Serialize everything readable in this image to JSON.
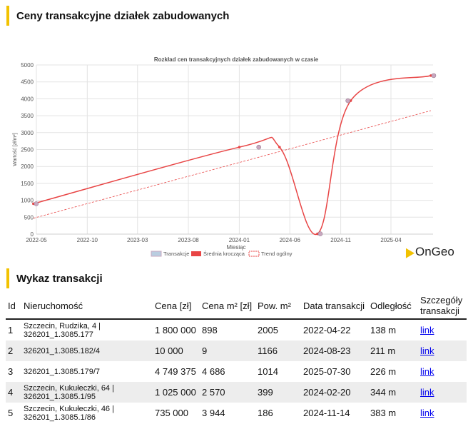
{
  "headings": {
    "prices": "Ceny transakcyjne działek zabudowanych",
    "list": "Wykaz transakcji"
  },
  "brand": "OnGeo",
  "chart_data": {
    "type": "line",
    "title": "Rozkład cen transakcyjnych działek zabudowanych w czasie",
    "xlabel": "Miesiąc",
    "ylabel": "Wartość [zł/m²]",
    "ylim": [
      0,
      5000
    ],
    "yticks": [
      0,
      500,
      1000,
      1500,
      2000,
      2500,
      3000,
      3500,
      4000,
      4500,
      5000
    ],
    "xticks": [
      "2022-05",
      "2022-10",
      "2023-03",
      "2023-08",
      "2024-01",
      "2024-06",
      "2024-11",
      "2025-04"
    ],
    "legend": [
      "Transakcje",
      "Średnia krocząca",
      "Trend ogólny"
    ],
    "legend_position": "bottom",
    "grid": true,
    "series": [
      {
        "name": "Transakcje",
        "x": [
          "2022-04-22",
          "2024-02-20",
          "2024-08-23",
          "2024-11-14",
          "2025-07-30"
        ],
        "y": [
          898,
          2570,
          9,
          3944,
          4686
        ]
      },
      {
        "name": "Średnia krocząca",
        "x": [
          "2022-04-22",
          "2024-01-01",
          "2024-05-01",
          "2024-08-23",
          "2024-12-01",
          "2025-07-30"
        ],
        "y": [
          898,
          2570,
          2570,
          9,
          3944,
          4686
        ]
      },
      {
        "name": "Trend ogólny",
        "x": [
          "2022-04-22",
          "2025-07-30"
        ],
        "y": [
          470,
          3650
        ]
      }
    ],
    "colors": {
      "points": "#c9a8c0",
      "moving": "#e84545",
      "trend": "#e84545"
    }
  },
  "table": {
    "headers": [
      "Id",
      "Nieruchomość",
      "Cena [zł]",
      "Cena m² [zł]",
      "Pow. m²",
      "Data transakcji",
      "Odległość",
      "Szczegóły transakcji"
    ],
    "rows": [
      {
        "id": "1",
        "property": "Szczecin, Rudzika, 4 | 326201_1.3085.177",
        "price": "1 800 000",
        "price_m2": "898",
        "area": "2005",
        "date": "2022-04-22",
        "distance": "138 m",
        "details": "link"
      },
      {
        "id": "2",
        "property": "326201_1.3085.182/4",
        "price": "10 000",
        "price_m2": "9",
        "area": "1166",
        "date": "2024-08-23",
        "distance": "211 m",
        "details": "link"
      },
      {
        "id": "3",
        "property": "326201_1.3085.179/7",
        "price": "4 749 375",
        "price_m2": "4 686",
        "area": "1014",
        "date": "2025-07-30",
        "distance": "226 m",
        "details": "link"
      },
      {
        "id": "4",
        "property": "Szczecin, Kukułeczki, 64 | 326201_1.3085.1/95",
        "price": "1 025 000",
        "price_m2": "2 570",
        "area": "399",
        "date": "2024-02-20",
        "distance": "344 m",
        "details": "link"
      },
      {
        "id": "5",
        "property": "Szczecin, Kukułeczki, 46 | 326201_1.3085.1/86",
        "price": "735 000",
        "price_m2": "3 944",
        "area": "186",
        "date": "2024-11-14",
        "distance": "383 m",
        "details": "link"
      }
    ]
  }
}
